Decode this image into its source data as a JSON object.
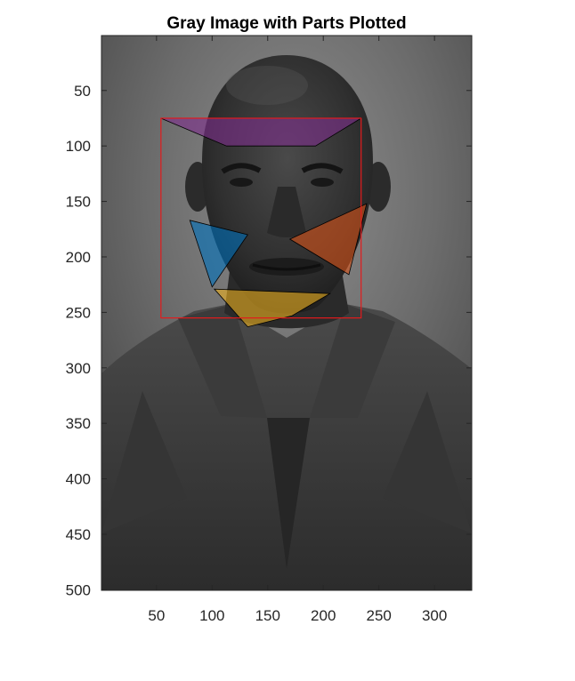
{
  "chart_data": {
    "type": "image",
    "title": "Gray Image with Parts Plotted",
    "xlim": [
      0.5,
      333.5
    ],
    "ylim": [
      0.5,
      500.5
    ],
    "y_reversed": true,
    "x_ticks": [
      50,
      100,
      150,
      200,
      250,
      300
    ],
    "y_ticks": [
      50,
      100,
      150,
      200,
      250,
      300,
      350,
      400,
      450,
      500
    ],
    "x_tick_labels": [
      "50",
      "100",
      "150",
      "200",
      "250",
      "300"
    ],
    "y_tick_labels": [
      "50",
      "100",
      "150",
      "200",
      "250",
      "300",
      "350",
      "400",
      "450",
      "500"
    ],
    "image": {
      "description_subject": "grayscale portrait",
      "colormap": "gray"
    },
    "bounding_box": {
      "name": "face",
      "x": 54,
      "y": 75,
      "width": 180,
      "height": 180,
      "color": "#e41a1c"
    },
    "parts": [
      {
        "name": "forehead",
        "color": "#7e2f8e",
        "alpha": 0.6,
        "points": [
          [
            54,
            75
          ],
          [
            234,
            75
          ],
          [
            193,
            100
          ],
          [
            113,
            100
          ]
        ]
      },
      {
        "name": "left-cheek",
        "color": "#0072bd",
        "alpha": 0.6,
        "points": [
          [
            80,
            167
          ],
          [
            132,
            180
          ],
          [
            100,
            227
          ]
        ]
      },
      {
        "name": "right-cheek",
        "color": "#d95319",
        "alpha": 0.6,
        "points": [
          [
            239,
            152
          ],
          [
            223,
            216
          ],
          [
            170,
            184
          ]
        ]
      },
      {
        "name": "chin",
        "color": "#edb120",
        "alpha": 0.6,
        "points": [
          [
            102,
            229
          ],
          [
            206,
            233
          ],
          [
            172,
            253
          ],
          [
            132,
            263
          ]
        ]
      }
    ]
  }
}
